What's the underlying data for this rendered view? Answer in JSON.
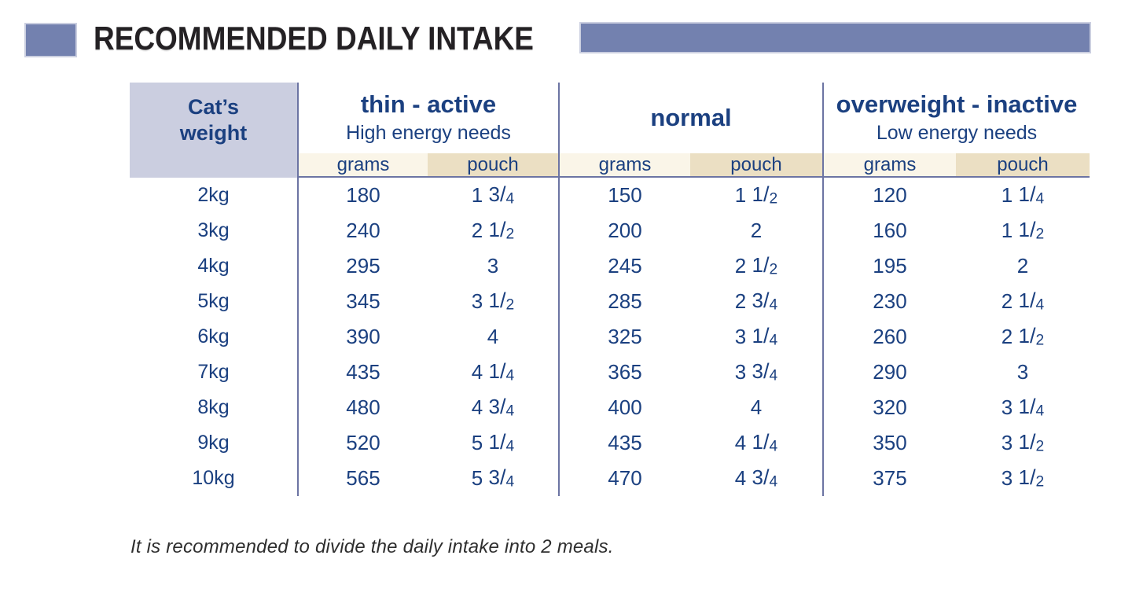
{
  "colors": {
    "slate": "#7381AF",
    "slate_edge": "#CBCFE0",
    "lavender": "#CBCEE0",
    "navy": "#1B4080",
    "cream": "#FAF5E8",
    "cream_light": "#F8F2E2",
    "beige": "#EBDFC3",
    "divider": "#6C74A3",
    "title_text": "#242124",
    "note_text": "#2E2E2E"
  },
  "header": {
    "title": "RECOMMENDED DAILY INTAKE"
  },
  "table": {
    "weight_header": {
      "line1": "Cat’s",
      "line2": "weight"
    },
    "sections": [
      {
        "title": "thin - active",
        "subtitle": "High energy needs",
        "grams_label": "grams",
        "pouch_label": "pouch"
      },
      {
        "title": "normal",
        "subtitle": "",
        "grams_label": "grams",
        "pouch_label": "pouch"
      },
      {
        "title": "overweight - inactive",
        "subtitle": "Low energy needs",
        "grams_label": "grams",
        "pouch_label": "pouch"
      }
    ],
    "rows": [
      {
        "weight": "2kg",
        "cells": [
          "180",
          "1 3/4",
          "150",
          "1 1/2",
          "120",
          "1 1/4"
        ]
      },
      {
        "weight": "3kg",
        "cells": [
          "240",
          "2 1/2",
          "200",
          "2",
          "160",
          "1 1/2"
        ]
      },
      {
        "weight": "4kg",
        "cells": [
          "295",
          "3",
          "245",
          "2 1/2",
          "195",
          "2"
        ]
      },
      {
        "weight": "5kg",
        "cells": [
          "345",
          "3 1/2",
          "285",
          "2 3/4",
          "230",
          "2 1/4"
        ]
      },
      {
        "weight": "6kg",
        "cells": [
          "390",
          "4",
          "325",
          "3 1/4",
          "260",
          "2 1/2"
        ]
      },
      {
        "weight": "7kg",
        "cells": [
          "435",
          "4 1/4",
          "365",
          "3 3/4",
          "290",
          "3"
        ]
      },
      {
        "weight": "8kg",
        "cells": [
          "480",
          "4 3/4",
          "400",
          "4",
          "320",
          "3 1/4"
        ]
      },
      {
        "weight": "9kg",
        "cells": [
          "520",
          "5 1/4",
          "435",
          "4 1/4",
          "350",
          "3 1/2"
        ]
      },
      {
        "weight": "10kg",
        "cells": [
          "565",
          "5 3/4",
          "470",
          "4 3/4",
          "375",
          "3 1/2"
        ]
      }
    ]
  },
  "footer_note": "It is recommended to divide the daily intake into 2 meals."
}
